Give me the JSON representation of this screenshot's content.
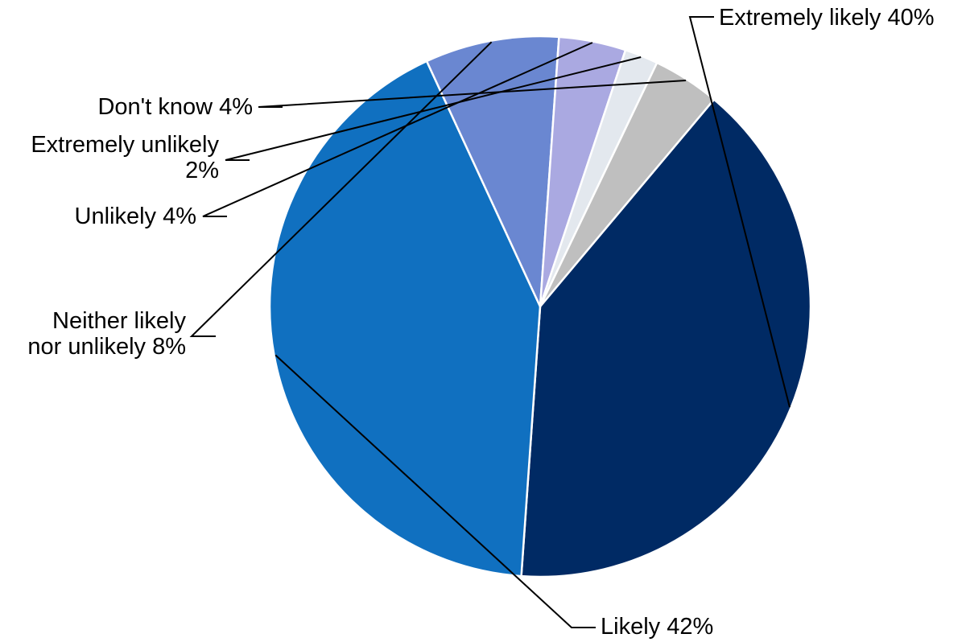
{
  "chart_data": {
    "type": "pie",
    "title": "",
    "start_angle_deg": 40,
    "direction": "clockwise",
    "slices": [
      {
        "label": "Extremely likely",
        "value": 40,
        "value_label": "40%",
        "color": "#002a64",
        "text_lines": [
          "Extremely likely 40%"
        ]
      },
      {
        "label": "Likely",
        "value": 42,
        "value_label": "42%",
        "color": "#1070c0",
        "text_lines": [
          "Likely 42%"
        ]
      },
      {
        "label": "Neither likely nor unlikely",
        "value": 8,
        "value_label": "8%",
        "color": "#6a87d1",
        "text_lines": [
          "Neither likely",
          "nor unlikely 8%"
        ]
      },
      {
        "label": "Unlikely",
        "value": 4,
        "value_label": "4%",
        "color": "#aaa9e1",
        "text_lines": [
          "Unlikely 4%"
        ]
      },
      {
        "label": "Extremely unlikely",
        "value": 2,
        "value_label": "2%",
        "color": "#e3e8ee",
        "text_lines": [
          "Extremely unlikely",
          "2%"
        ]
      },
      {
        "label": "Don't know",
        "value": 4,
        "value_label": "4%",
        "color": "#bfbfbf",
        "text_lines": [
          "Don't know 4%"
        ]
      }
    ]
  }
}
